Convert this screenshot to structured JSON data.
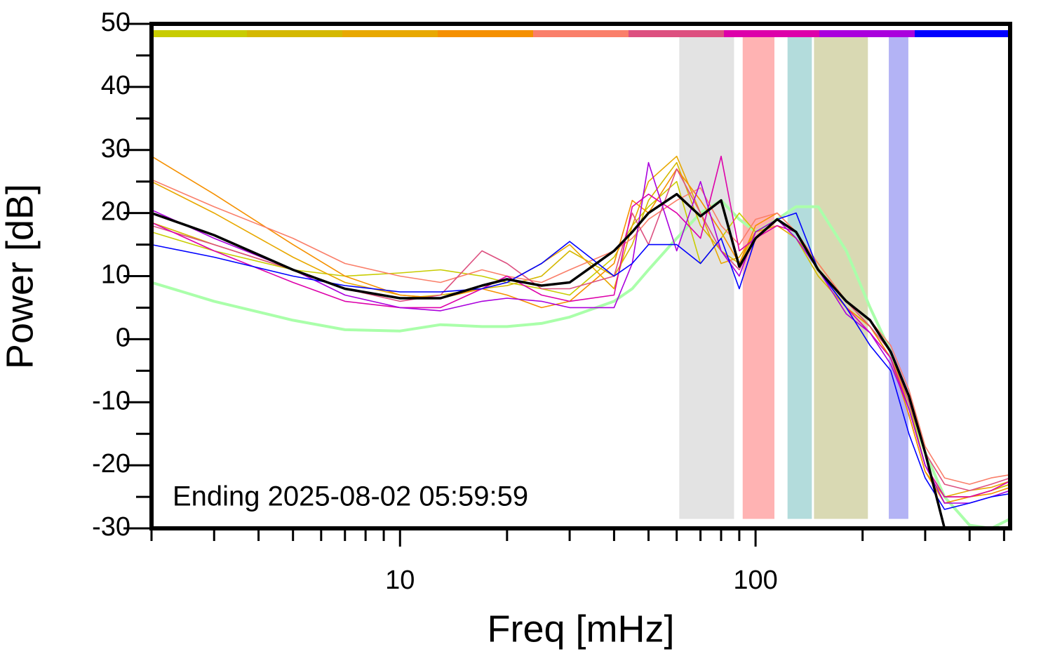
{
  "chart_data": {
    "type": "line",
    "xlabel": "Freq [mHz]",
    "ylabel": "Power [dB]",
    "annotation": "Ending 2025-08-02 05:59:59",
    "xscale": "log",
    "xlim": [
      2,
      520
    ],
    "ylim": [
      -30,
      50
    ],
    "xticks": [
      10,
      100
    ],
    "xminor_ticks": [
      2,
      3,
      4,
      5,
      6,
      7,
      8,
      9,
      20,
      30,
      40,
      50,
      60,
      70,
      80,
      90,
      200,
      300,
      400,
      500
    ],
    "yticks": [
      -30,
      -20,
      -10,
      0,
      10,
      20,
      30,
      40,
      50
    ],
    "yminor_ticks": [
      -25,
      -15,
      -5,
      5,
      15,
      25,
      35,
      45
    ],
    "timeline_colors": [
      "#c8cc00",
      "#d4b800",
      "#e8a800",
      "#f59000",
      "#fa7f6a",
      "#dd5080",
      "#dd00aa",
      "#aa00dd",
      "#0000ff"
    ],
    "bands": [
      {
        "x": [
          61,
          87
        ],
        "color": "#e3e3e3"
      },
      {
        "x": [
          92,
          113
        ],
        "color": "#ffb3b3"
      },
      {
        "x": [
          123,
          144
        ],
        "color": "#b3dcdc"
      },
      {
        "x": [
          146,
          207
        ],
        "color": "#d9d9b3"
      },
      {
        "x": [
          237,
          269
        ],
        "color": "#b3b3f5"
      }
    ],
    "band_ylim": [
      -28.5,
      48
    ],
    "x": [
      2,
      3,
      5,
      7,
      10,
      13,
      17,
      20,
      25,
      30,
      40,
      45,
      50,
      60,
      70,
      80,
      90,
      100,
      115,
      130,
      150,
      180,
      210,
      240,
      270,
      300,
      340,
      400,
      460,
      520
    ],
    "series": [
      {
        "color": "#aaffaa",
        "width": 4,
        "values": [
          9,
          6,
          3,
          1.5,
          1.3,
          2.3,
          2,
          2,
          2.5,
          3.5,
          6,
          8,
          11,
          16,
          20,
          22,
          19,
          17,
          19,
          21,
          21,
          14,
          5,
          -2,
          -10,
          -18,
          -25,
          -29.5,
          -30,
          -28.5
        ]
      },
      {
        "color": "#c8cc00",
        "width": 1.6,
        "values": [
          17,
          14,
          11,
          10,
          10.5,
          11,
          10,
          9,
          8,
          7,
          13,
          18,
          21,
          25,
          12,
          16,
          20,
          17,
          19,
          17,
          11,
          6,
          2,
          -3,
          -10,
          -20,
          -26,
          -25,
          -24,
          -23
        ]
      },
      {
        "color": "#d4b800",
        "width": 1.6,
        "values": [
          18.5,
          15,
          11,
          8,
          6.5,
          7,
          8,
          8.5,
          10,
          14,
          10,
          15,
          22,
          28,
          18,
          14,
          12,
          17,
          19,
          16,
          10,
          5,
          2,
          -3,
          -12,
          -21,
          -25,
          -25,
          -24,
          -23
        ]
      },
      {
        "color": "#e8a800",
        "width": 1.6,
        "values": [
          25,
          20,
          13,
          9,
          7,
          6.5,
          8,
          9,
          12,
          15,
          8,
          18,
          25,
          29,
          20,
          12,
          13,
          17,
          18,
          16,
          12,
          6,
          3,
          -2,
          -11,
          -20,
          -25,
          -24,
          -23.5,
          -22.5
        ]
      },
      {
        "color": "#f59000",
        "width": 1.6,
        "values": [
          29,
          23,
          15,
          10,
          7,
          6.5,
          8,
          7,
          5,
          6,
          12,
          22,
          20,
          27,
          22,
          17,
          12,
          18,
          20,
          17,
          11,
          5,
          2,
          -3,
          -12,
          -21,
          -26,
          -25,
          -24.5,
          -23.5
        ]
      },
      {
        "color": "#fa7f6a",
        "width": 1.6,
        "values": [
          25.3,
          21,
          16,
          12,
          10,
          9,
          11,
          10,
          9,
          11,
          14,
          16,
          19,
          22,
          24,
          18,
          15,
          19,
          20,
          17,
          12,
          6,
          3,
          -1,
          -8,
          -17,
          -22,
          -23,
          -22,
          -21.5
        ]
      },
      {
        "color": "#dd5080",
        "width": 1.6,
        "values": [
          18,
          15,
          11,
          8,
          6,
          7,
          14,
          12,
          8,
          8,
          10,
          20,
          15,
          27,
          20,
          14,
          11,
          16,
          19,
          17,
          11,
          6,
          2,
          -2,
          -10,
          -18,
          -23,
          -24,
          -23,
          -22
        ]
      },
      {
        "color": "#dd00aa",
        "width": 1.6,
        "values": [
          18.5,
          14,
          9,
          6,
          5,
          5,
          8,
          10,
          7,
          6,
          7,
          21,
          23,
          20,
          16,
          29,
          14,
          16,
          18,
          17,
          11,
          5,
          1,
          -3,
          -11,
          -20,
          -25,
          -25,
          -24,
          -22.5
        ]
      },
      {
        "color": "#aa00dd",
        "width": 1.6,
        "values": [
          20.5,
          16,
          11,
          7,
          5,
          4.5,
          6,
          6.5,
          6,
          5,
          5,
          12,
          28,
          14,
          25,
          14,
          10,
          17,
          19,
          16,
          11,
          4,
          1,
          -4,
          -11,
          -20,
          -26,
          -26,
          -25,
          -24
        ]
      },
      {
        "color": "#0000ff",
        "width": 1.6,
        "values": [
          15,
          13,
          10,
          8.5,
          7.5,
          7.5,
          8,
          9,
          12,
          15.5,
          10,
          12,
          15,
          15,
          12,
          16,
          8,
          16,
          19,
          20,
          11,
          5,
          -1,
          -5,
          -15,
          -22,
          -27,
          -26,
          -25,
          -24.5
        ]
      },
      {
        "color": "#000000",
        "width": 3.5,
        "values": [
          20,
          16.5,
          11,
          8,
          6.5,
          6.5,
          8.5,
          9.5,
          8.5,
          9,
          14,
          17,
          20,
          23,
          19.5,
          22,
          11.5,
          16,
          19,
          17,
          11,
          6,
          3,
          -2,
          -9,
          -18,
          -30,
          null,
          null,
          null
        ]
      }
    ]
  }
}
